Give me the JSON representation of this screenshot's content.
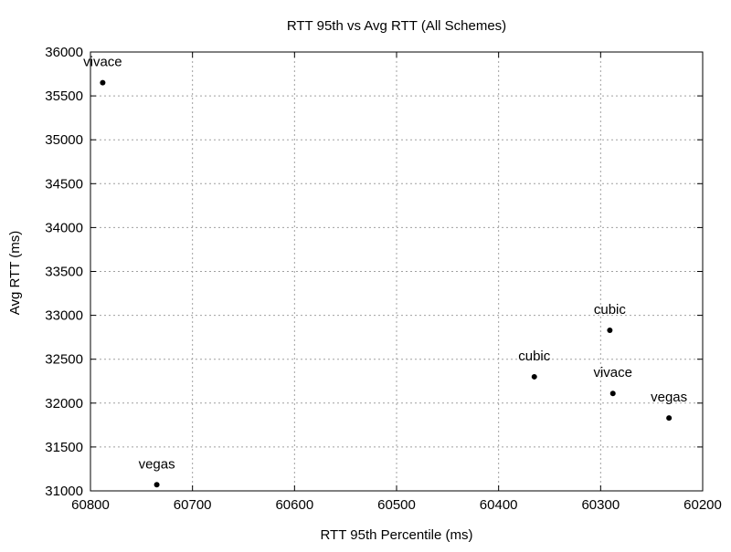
{
  "chart_data": {
    "type": "scatter",
    "title": "RTT 95th vs Avg RTT (All Schemes)",
    "xlabel": "RTT 95th Percentile (ms)",
    "ylabel": "Avg RTT (ms)",
    "xlim": [
      60800,
      60200
    ],
    "ylim": [
      31000,
      36000
    ],
    "x_reversed": true,
    "x_ticks": [
      60800,
      60700,
      60600,
      60500,
      60400,
      60300,
      60200
    ],
    "y_ticks": [
      31000,
      31500,
      32000,
      32500,
      33000,
      33500,
      34000,
      34500,
      35000,
      35500,
      36000
    ],
    "grid": true,
    "points": [
      {
        "x": 60788,
        "y": 35650,
        "label": "vivace"
      },
      {
        "x": 60291,
        "y": 32830,
        "label": "cubic"
      },
      {
        "x": 60365,
        "y": 32300,
        "label": "cubic"
      },
      {
        "x": 60288,
        "y": 32110,
        "label": "vivace"
      },
      {
        "x": 60233,
        "y": 31830,
        "label": "vegas"
      },
      {
        "x": 60735,
        "y": 31070,
        "label": "vegas"
      }
    ]
  },
  "colors": {
    "axis": "#000000",
    "grid": "#a0a0a0",
    "marker": "#000000"
  }
}
